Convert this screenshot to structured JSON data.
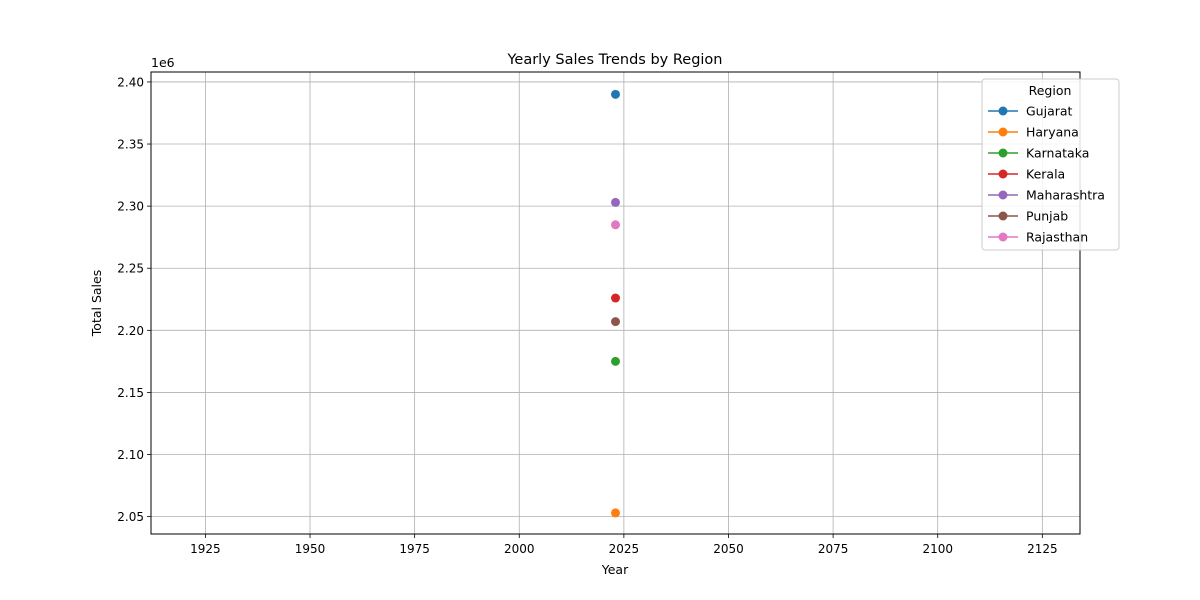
{
  "chart_data": {
    "type": "line",
    "title": "Yearly Sales Trends by Region",
    "xlabel": "Year",
    "ylabel": "Total Sales",
    "y_offset_label": "1e6",
    "xlim": [
      1912,
      2134
    ],
    "ylim": [
      2036000,
      2408000
    ],
    "x_ticks": [
      1925,
      1950,
      1975,
      2000,
      2025,
      2050,
      2075,
      2100,
      2125
    ],
    "y_ticks": [
      2050000,
      2100000,
      2150000,
      2200000,
      2250000,
      2300000,
      2350000,
      2400000
    ],
    "y_tick_labels": [
      "2.05",
      "2.10",
      "2.15",
      "2.20",
      "2.25",
      "2.30",
      "2.35",
      "2.40"
    ],
    "grid": true,
    "legend_title": "Region",
    "legend_position": "top-right",
    "series": [
      {
        "name": "Gujarat",
        "color": "#1f77b4",
        "x": [
          2023
        ],
        "y": [
          2390000
        ]
      },
      {
        "name": "Haryana",
        "color": "#ff7f0e",
        "x": [
          2023
        ],
        "y": [
          2053000
        ]
      },
      {
        "name": "Karnataka",
        "color": "#2ca02c",
        "x": [
          2023
        ],
        "y": [
          2175000
        ]
      },
      {
        "name": "Kerala",
        "color": "#d62728",
        "x": [
          2023
        ],
        "y": [
          2226000
        ]
      },
      {
        "name": "Maharashtra",
        "color": "#9467bd",
        "x": [
          2023
        ],
        "y": [
          2303000
        ]
      },
      {
        "name": "Punjab",
        "color": "#8c564b",
        "x": [
          2023
        ],
        "y": [
          2207000
        ]
      },
      {
        "name": "Rajasthan",
        "color": "#e377c2",
        "x": [
          2023
        ],
        "y": [
          2285000
        ]
      }
    ]
  }
}
